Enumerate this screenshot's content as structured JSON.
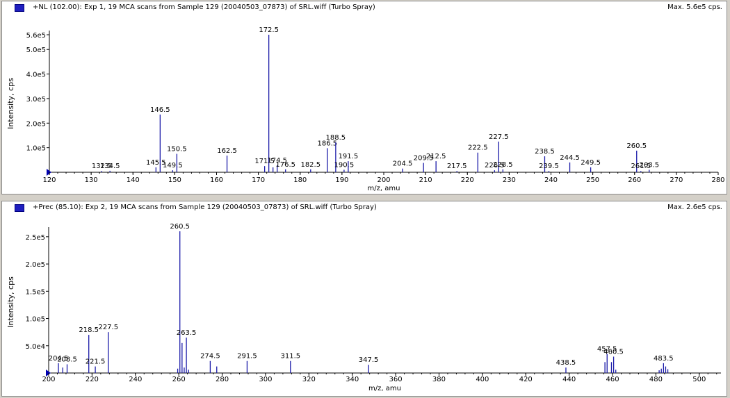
{
  "panels": [
    {
      "title": "+NL (102.00): Exp 1, 19 MCA scans from Sample 129 (20040503_07873) of SRL.wiff (Turbo Spray)",
      "max_label": "Max. 5.6e5 cps."
    },
    {
      "title": "+Prec (85.10): Exp 2, 19 MCA scans from Sample 129 (20040503_07873) of SRL.wiff (Turbo Spray)",
      "max_label": "Max. 2.6e5 cps."
    }
  ],
  "colors": {
    "peak": "#1a1aa8",
    "axis": "#000000",
    "marker": "#0000b0"
  },
  "chart_data": [
    {
      "type": "bar",
      "xlabel": "m/z, amu",
      "ylabel": "Intensity, cps",
      "xlim": [
        120,
        280
      ],
      "ylim": [
        0,
        560000
      ],
      "xticks": [
        120,
        130,
        140,
        150,
        160,
        170,
        180,
        190,
        200,
        210,
        220,
        230,
        240,
        250,
        260,
        270,
        280
      ],
      "yticks": [
        {
          "v": 100000,
          "label": "1.0e5"
        },
        {
          "v": 200000,
          "label": "2.0e5"
        },
        {
          "v": 300000,
          "label": "3.0e5"
        },
        {
          "v": 400000,
          "label": "4.0e5"
        },
        {
          "v": 500000,
          "label": "5.0e5"
        },
        {
          "v": 560000,
          "label": "5.6e5"
        }
      ],
      "peaks": [
        {
          "x": 132.5,
          "y": 5000,
          "label": "132.5"
        },
        {
          "x": 134.5,
          "y": 6000,
          "label": "134.5"
        },
        {
          "x": 145.5,
          "y": 20000,
          "label": "145.5"
        },
        {
          "x": 146.5,
          "y": 235000,
          "label": "146.5"
        },
        {
          "x": 149.5,
          "y": 8000,
          "label": "149.5"
        },
        {
          "x": 150.5,
          "y": 75000,
          "label": "150.5"
        },
        {
          "x": 162.5,
          "y": 68000,
          "label": "162.5"
        },
        {
          "x": 171.5,
          "y": 25000,
          "label": "171.5"
        },
        {
          "x": 172.5,
          "y": 560000,
          "label": "172.5"
        },
        {
          "x": 174.5,
          "y": 28000,
          "label": "174.5"
        },
        {
          "x": 173.5,
          "y": 20000,
          "label": ""
        },
        {
          "x": 176.5,
          "y": 12000,
          "label": "176.5"
        },
        {
          "x": 182.5,
          "y": 12000,
          "label": "182.5"
        },
        {
          "x": 186.5,
          "y": 98000,
          "label": "186.5"
        },
        {
          "x": 188.5,
          "y": 122000,
          "label": "188.5"
        },
        {
          "x": 190.5,
          "y": 10000,
          "label": "190.5"
        },
        {
          "x": 191.5,
          "y": 45000,
          "label": "191.5"
        },
        {
          "x": 204.5,
          "y": 15000,
          "label": "204.5"
        },
        {
          "x": 209.5,
          "y": 38000,
          "label": "209.5"
        },
        {
          "x": 212.5,
          "y": 45000,
          "label": "212.5"
        },
        {
          "x": 217.5,
          "y": 5000,
          "label": "217.5"
        },
        {
          "x": 222.5,
          "y": 80000,
          "label": "222.5"
        },
        {
          "x": 226.5,
          "y": 8000,
          "label": "226.5"
        },
        {
          "x": 227.5,
          "y": 125000,
          "label": "227.5"
        },
        {
          "x": 228.5,
          "y": 12000,
          "label": "228.5"
        },
        {
          "x": 238.5,
          "y": 65000,
          "label": "238.5"
        },
        {
          "x": 239.5,
          "y": 5000,
          "label": "239.5"
        },
        {
          "x": 244.5,
          "y": 40000,
          "label": "244.5"
        },
        {
          "x": 249.5,
          "y": 20000,
          "label": "249.5"
        },
        {
          "x": 260.5,
          "y": 88000,
          "label": "260.5"
        },
        {
          "x": 261.5,
          "y": 5000,
          "label": "261.5"
        },
        {
          "x": 263.5,
          "y": 10000,
          "label": "263.5"
        }
      ]
    },
    {
      "type": "bar",
      "xlabel": "m/z, amu",
      "ylabel": "Intensity, cps",
      "xlim": [
        200,
        510
      ],
      "ylim": [
        0,
        260000
      ],
      "xticks": [
        200,
        220,
        240,
        260,
        280,
        300,
        320,
        340,
        360,
        380,
        400,
        420,
        440,
        460,
        480,
        500
      ],
      "yticks": [
        {
          "v": 50000,
          "label": "5.0e4"
        },
        {
          "v": 100000,
          "label": "1.0e5"
        },
        {
          "v": 150000,
          "label": "1.5e5"
        },
        {
          "v": 200000,
          "label": "2.0e5"
        },
        {
          "v": 250000,
          "label": "2.5e5"
        }
      ],
      "peaks": [
        {
          "x": 204.5,
          "y": 18000,
          "label": "204.5"
        },
        {
          "x": 206.5,
          "y": 10000,
          "label": ""
        },
        {
          "x": 208.5,
          "y": 16000,
          "label": "208.5"
        },
        {
          "x": 218.5,
          "y": 70000,
          "label": "218.5"
        },
        {
          "x": 221.5,
          "y": 12000,
          "label": "221.5"
        },
        {
          "x": 227.5,
          "y": 75000,
          "label": "227.5"
        },
        {
          "x": 259.5,
          "y": 8000,
          "label": ""
        },
        {
          "x": 260.5,
          "y": 260000,
          "label": "260.5"
        },
        {
          "x": 261.5,
          "y": 55000,
          "label": ""
        },
        {
          "x": 262.5,
          "y": 10000,
          "label": ""
        },
        {
          "x": 263.5,
          "y": 65000,
          "label": "263.5"
        },
        {
          "x": 264.5,
          "y": 6000,
          "label": ""
        },
        {
          "x": 274.5,
          "y": 22000,
          "label": "274.5"
        },
        {
          "x": 277.5,
          "y": 12000,
          "label": ""
        },
        {
          "x": 291.5,
          "y": 22000,
          "label": "291.5"
        },
        {
          "x": 311.5,
          "y": 22000,
          "label": "311.5"
        },
        {
          "x": 347.5,
          "y": 15000,
          "label": "347.5"
        },
        {
          "x": 438.5,
          "y": 10000,
          "label": "438.5"
        },
        {
          "x": 456.5,
          "y": 20000,
          "label": ""
        },
        {
          "x": 457.5,
          "y": 35000,
          "label": "457.5"
        },
        {
          "x": 459.5,
          "y": 20000,
          "label": ""
        },
        {
          "x": 460.5,
          "y": 30000,
          "label": "460.5"
        },
        {
          "x": 461.5,
          "y": 6000,
          "label": ""
        },
        {
          "x": 481.5,
          "y": 5000,
          "label": ""
        },
        {
          "x": 482.5,
          "y": 8000,
          "label": ""
        },
        {
          "x": 483.5,
          "y": 18000,
          "label": "483.5"
        },
        {
          "x": 484.5,
          "y": 12000,
          "label": ""
        },
        {
          "x": 485.5,
          "y": 7000,
          "label": ""
        }
      ]
    }
  ]
}
